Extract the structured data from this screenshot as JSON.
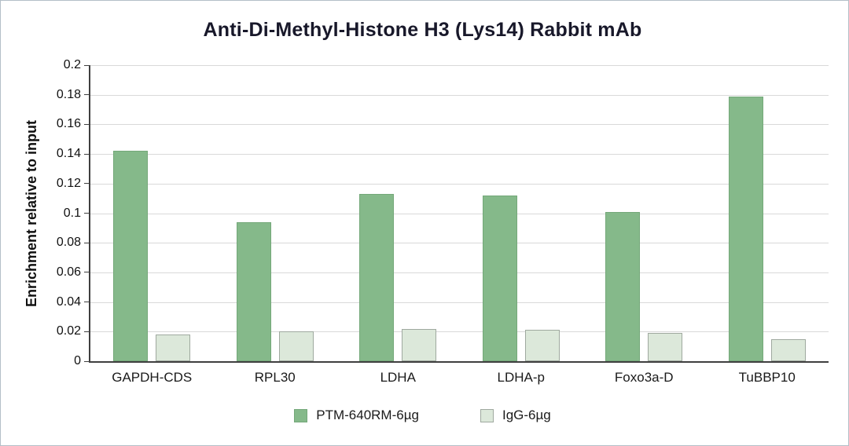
{
  "chart_data": {
    "type": "bar",
    "title": "Anti-Di-Methyl-Histone H3 (Lys14) Rabbit mAb",
    "ylabel": "Enrichment relative to input",
    "xlabel": "",
    "ylim": [
      0,
      0.2
    ],
    "ytick_step": 0.02,
    "ytick_labels": [
      "0",
      "0.02",
      "0.04",
      "0.06",
      "0.08",
      "0.1",
      "0.12",
      "0.14",
      "0.16",
      "0.18",
      "0.2"
    ],
    "categories": [
      "GAPDH-CDS",
      "RPL30",
      "LDHA",
      "LDHA-p",
      "Foxo3a-D",
      "TuBBP10"
    ],
    "series": [
      {
        "name": "PTM-640RM-6µg",
        "values": [
          0.142,
          0.094,
          0.113,
          0.112,
          0.101,
          0.179
        ],
        "fill": "#85b98a",
        "border": "#74a879"
      },
      {
        "name": "IgG-6µg",
        "values": [
          0.018,
          0.02,
          0.022,
          0.021,
          0.019,
          0.015
        ],
        "fill": "#dce8da",
        "border": "#9fa99f"
      }
    ],
    "grid": true,
    "legend_position": "bottom"
  }
}
